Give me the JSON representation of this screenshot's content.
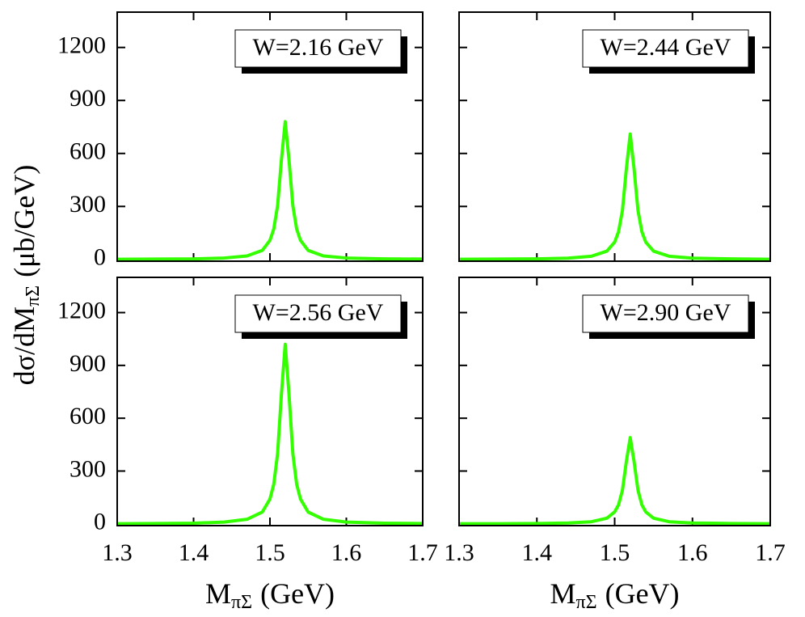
{
  "ylabel": {
    "main": "dσ/dM",
    "sub": "πΣ",
    "unit": "(μb/GeV)"
  },
  "chart_data": [
    {
      "type": "line",
      "annotation": "W=2.16 GeV",
      "color": "#33ff00",
      "x": [
        1.3,
        1.35,
        1.4,
        1.44,
        1.47,
        1.49,
        1.5,
        1.505,
        1.51,
        1.515,
        1.52,
        1.525,
        1.53,
        1.535,
        1.54,
        1.55,
        1.57,
        1.6,
        1.65,
        1.7
      ],
      "values": [
        1,
        2,
        3,
        8,
        20,
        51,
        108,
        172,
        304,
        562,
        780,
        562,
        304,
        172,
        108,
        51,
        20,
        8,
        3,
        2
      ],
      "xlim": [
        1.3,
        1.7
      ],
      "xticks": [
        1.3,
        1.4,
        1.5,
        1.6,
        1.7
      ],
      "ylim": [
        -10,
        1400
      ],
      "yticks": [
        0,
        300,
        600,
        900,
        1200
      ]
    },
    {
      "type": "line",
      "annotation": "W=2.44 GeV",
      "color": "#33ff00",
      "x": [
        1.3,
        1.35,
        1.4,
        1.44,
        1.47,
        1.49,
        1.5,
        1.505,
        1.51,
        1.515,
        1.52,
        1.525,
        1.53,
        1.535,
        1.54,
        1.55,
        1.57,
        1.6,
        1.65,
        1.7
      ],
      "values": [
        1,
        2,
        3,
        7,
        18,
        47,
        98,
        157,
        277,
        511,
        710,
        511,
        277,
        157,
        98,
        47,
        18,
        7,
        3,
        1
      ],
      "xlim": [
        1.3,
        1.7
      ],
      "xticks": [
        1.3,
        1.4,
        1.5,
        1.6,
        1.7
      ],
      "ylim": [
        -10,
        1400
      ],
      "yticks": [
        0,
        300,
        600,
        900,
        1200
      ]
    },
    {
      "type": "line",
      "annotation": "W=2.56 GeV",
      "color": "#33ff00",
      "x": [
        1.3,
        1.35,
        1.4,
        1.44,
        1.47,
        1.49,
        1.5,
        1.505,
        1.51,
        1.515,
        1.52,
        1.525,
        1.53,
        1.535,
        1.54,
        1.55,
        1.57,
        1.6,
        1.65,
        1.7
      ],
      "values": [
        1,
        2,
        4,
        10,
        26,
        67,
        141,
        225,
        398,
        734,
        1020,
        734,
        398,
        225,
        141,
        67,
        26,
        10,
        4,
        2
      ],
      "xlim": [
        1.3,
        1.7
      ],
      "xticks": [
        1.3,
        1.4,
        1.5,
        1.6,
        1.7
      ],
      "ylim": [
        -10,
        1400
      ],
      "yticks": [
        0,
        300,
        600,
        900,
        1200
      ],
      "xlabel": {
        "main": "M",
        "sub": "πΣ",
        "unit": "(GeV)"
      }
    },
    {
      "type": "line",
      "annotation": "W=2.90 GeV",
      "color": "#33ff00",
      "x": [
        1.3,
        1.35,
        1.4,
        1.44,
        1.47,
        1.49,
        1.5,
        1.505,
        1.51,
        1.515,
        1.52,
        1.525,
        1.53,
        1.535,
        1.54,
        1.55,
        1.57,
        1.6,
        1.65,
        1.7
      ],
      "values": [
        1,
        1,
        2,
        5,
        12,
        32,
        68,
        108,
        191,
        353,
        490,
        353,
        191,
        108,
        68,
        32,
        12,
        5,
        2,
        1
      ],
      "xlim": [
        1.3,
        1.7
      ],
      "xticks": [
        1.3,
        1.4,
        1.5,
        1.6,
        1.7
      ],
      "ylim": [
        -10,
        1400
      ],
      "yticks": [
        0,
        300,
        600,
        900,
        1200
      ],
      "xlabel": {
        "main": "M",
        "sub": "πΣ",
        "unit": "(GeV)"
      }
    }
  ]
}
